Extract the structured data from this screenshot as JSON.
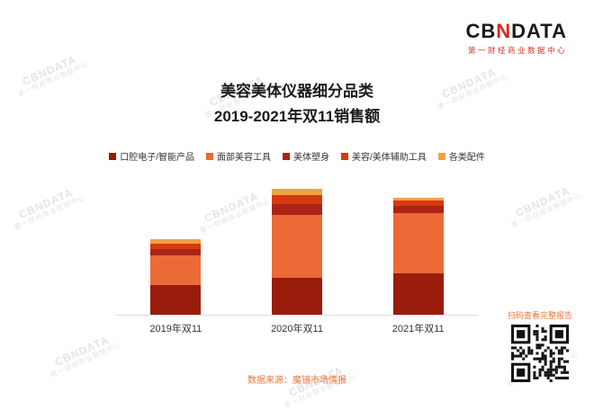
{
  "logo": {
    "cb": "CB",
    "n": "N",
    "data": "DATA",
    "subtitle": "第一财经商业数据中心"
  },
  "watermark": {
    "line1": "CBNDATA",
    "line2": "第一财经商业数据中心"
  },
  "title": {
    "line1": "美容美体仪器细分品类",
    "line2": "2019-2021年双11销售额"
  },
  "chart_data": {
    "type": "bar",
    "stacked": true,
    "title": "美容美体仪器细分品类 2019-2021年双11销售额",
    "xlabel": "",
    "ylabel": "",
    "legend_position": "top",
    "y_axis_visible": false,
    "ylim": [
      0,
      150
    ],
    "categories": [
      "2019年双11",
      "2020年双11",
      "2021年双11"
    ],
    "series": [
      {
        "name": "口腔电子/智能产品",
        "color": "#991c0d",
        "values": [
          33,
          41,
          46
        ]
      },
      {
        "name": "面部美容工具",
        "color": "#eb6a35",
        "values": [
          33,
          70,
          67
        ]
      },
      {
        "name": "美体塑身",
        "color": "#ab2418",
        "values": [
          7,
          12,
          8
        ]
      },
      {
        "name": "美容/美体辅助工具",
        "color": "#d63a10",
        "values": [
          6,
          10,
          6
        ]
      },
      {
        "name": "各类配件",
        "color": "#f0a243",
        "values": [
          5,
          7,
          3
        ]
      }
    ]
  },
  "footer": {
    "source": "数据来源：魔镜市场情报",
    "qr_caption": "扫码查看完整报告"
  }
}
